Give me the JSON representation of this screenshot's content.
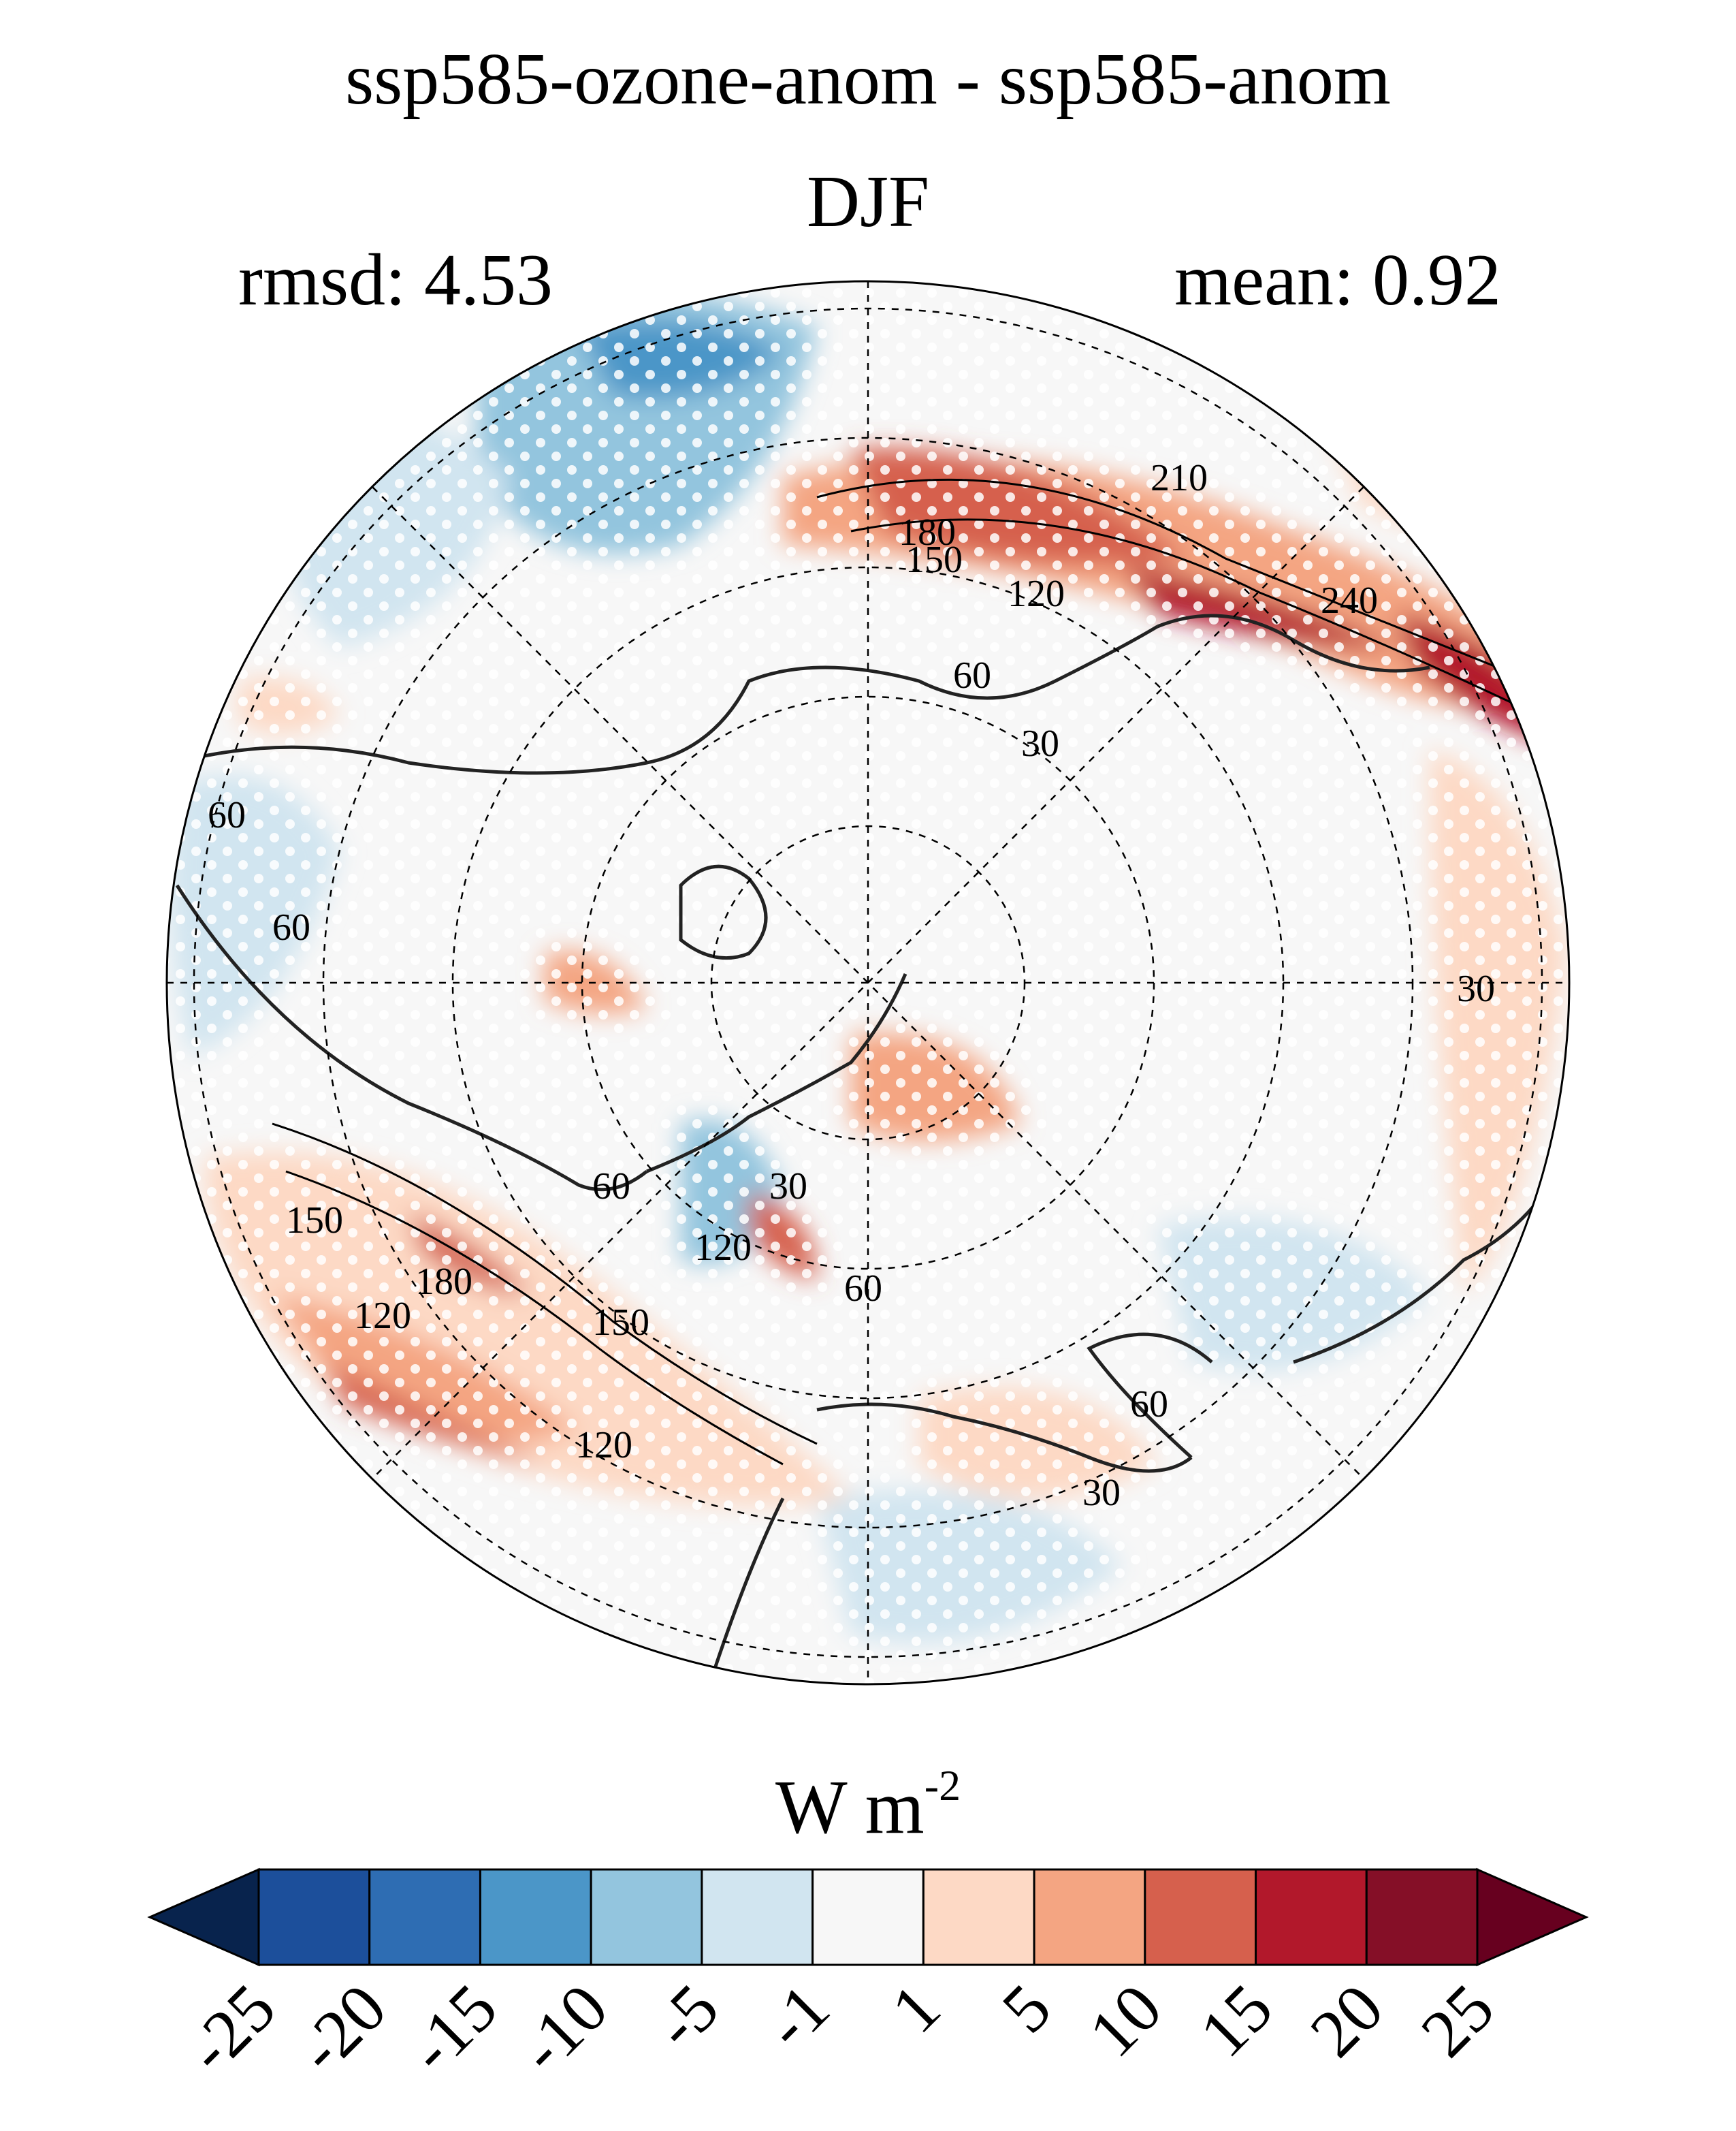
{
  "title": "ssp585-ozone-anom - ssp585-anom",
  "season": "DJF",
  "stats": {
    "rmsd": "rmsd: 4.53",
    "mean": "mean: 0.92"
  },
  "units": {
    "base": "W m",
    "exp": "-2"
  },
  "colorbar": {
    "levels": [
      "-25",
      "-20",
      "-15",
      "-10",
      "-5",
      "-1",
      "1",
      "5",
      "10",
      "15",
      "20",
      "25"
    ],
    "colors": [
      "#08234d",
      "#1c4f9b",
      "#2e6db3",
      "#4b96c8",
      "#93c5de",
      "#d1e5f0",
      "#f7f7f7",
      "#fdd9c5",
      "#f4a582",
      "#d6604d",
      "#b2182b",
      "#850f27",
      "#67001f"
    ]
  },
  "contour_labels": [
    "210",
    "180",
    "150",
    "120",
    "240",
    "60",
    "30",
    "60",
    "30",
    "60",
    "150",
    "180",
    "150",
    "120",
    "60",
    "120",
    "30",
    "60",
    "60",
    "30",
    "120"
  ],
  "colors": {
    "land_outline": "#222222",
    "grid": "#000000"
  }
}
